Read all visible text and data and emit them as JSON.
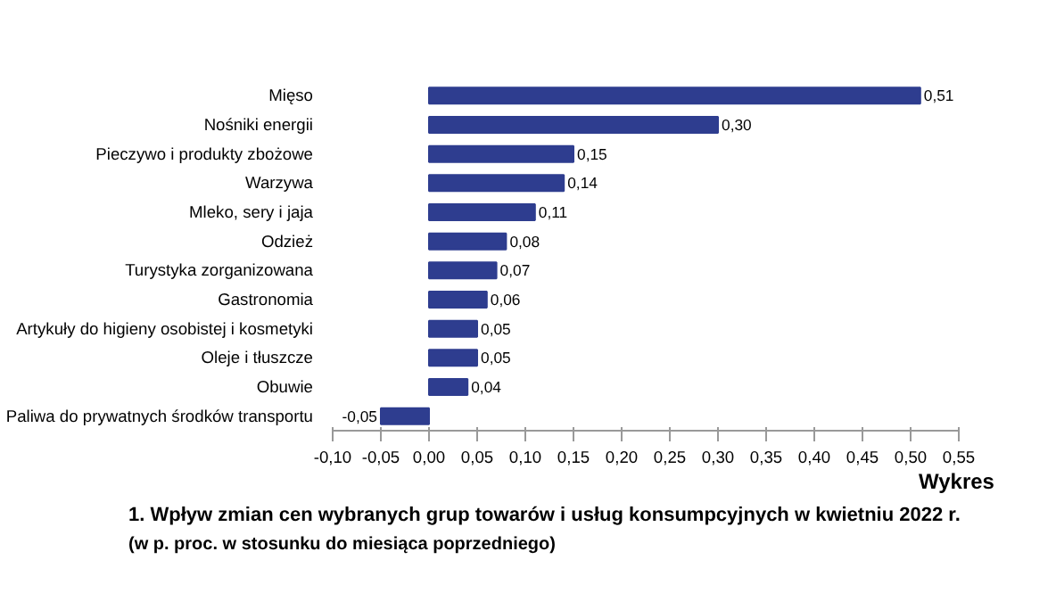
{
  "chart_data": {
    "type": "bar",
    "orientation": "horizontal",
    "title": "1. Wpływ zmian cen wybranych grup towarów i usług konsumpcyjnych w kwietniu 2022 r.",
    "subtitle": "(w p. proc. w stosunku do miesiąca poprzedniego)",
    "annotations": [
      "Wykres"
    ],
    "categories": [
      "Mięso",
      "Nośniki energii",
      "Pieczywo i produkty zbożowe",
      "Warzywa",
      "Mleko, sery i jaja",
      "Odzież",
      "Turystyka zorganizowana",
      "Gastronomia",
      "Artykuły do higieny osobistej i kosmetyki",
      "Oleje i tłuszcze",
      "Obuwie",
      "Paliwa do prywatnych środków transportu"
    ],
    "values": [
      0.51,
      0.3,
      0.15,
      0.14,
      0.11,
      0.08,
      0.07,
      0.06,
      0.05,
      0.05,
      0.04,
      -0.05
    ],
    "value_labels": [
      "0,51",
      "0,30",
      "0,15",
      "0,14",
      "0,11",
      "0,08",
      "0,07",
      "0,06",
      "0,05",
      "0,05",
      "0,04",
      "-0,05"
    ],
    "color": "#2e3d8f",
    "xlim": [
      -0.1,
      0.55
    ],
    "xticks": [
      {
        "value": -0.1,
        "label": "-0,10"
      },
      {
        "value": -0.05,
        "label": "-0,05"
      },
      {
        "value": 0,
        "label": "0,00"
      },
      {
        "value": 0.05,
        "label": "0,05"
      },
      {
        "value": 0.1,
        "label": "0,10"
      },
      {
        "value": 0.15,
        "label": "0,15"
      },
      {
        "value": 0.2,
        "label": "0,20"
      },
      {
        "value": 0.25,
        "label": "0,25"
      },
      {
        "value": 0.3,
        "label": "0,30"
      },
      {
        "value": 0.35,
        "label": "0,35"
      },
      {
        "value": 0.4,
        "label": "0,40"
      },
      {
        "value": 0.45,
        "label": "0,45"
      },
      {
        "value": 0.5,
        "label": "0,50"
      },
      {
        "value": 0.55,
        "label": "0,55"
      }
    ],
    "grid": false,
    "legend": false
  }
}
